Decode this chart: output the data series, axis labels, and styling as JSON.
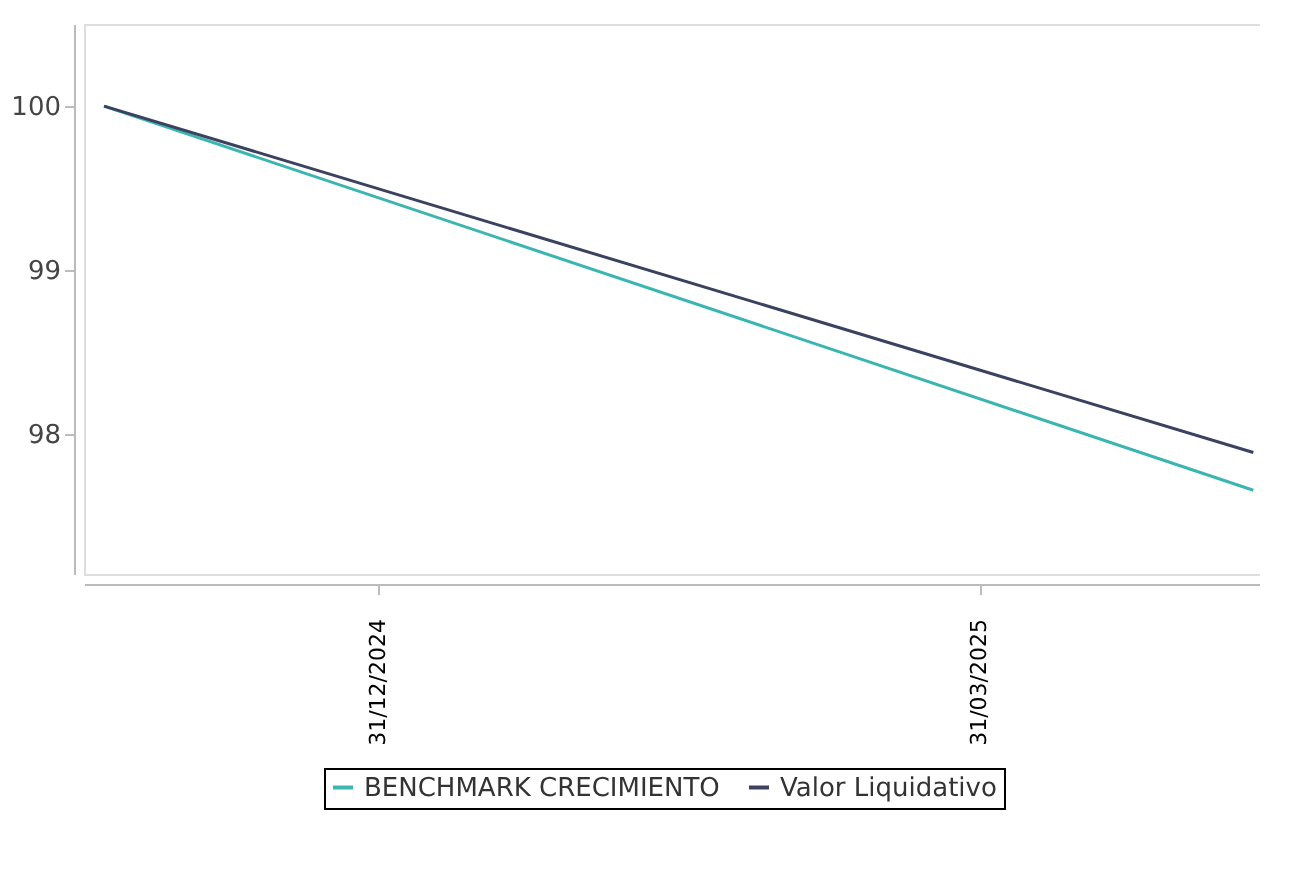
{
  "chart_data": {
    "type": "line",
    "x": [
      "2024-11-20",
      "2025-05-11"
    ],
    "series": [
      {
        "name": "BENCHMARK CRECIMIENTO",
        "color": "#3ab5b0",
        "values": [
          100,
          97.66
        ]
      },
      {
        "name": "Valor Liquidativo",
        "color": "#3a4260",
        "values": [
          100,
          97.89
        ]
      }
    ],
    "xlim": [
      "2024-11-17",
      "2025-05-12"
    ],
    "xticks": [
      {
        "value": "2024-12-31",
        "label": "31/12/2024"
      },
      {
        "value": "2025-03-31",
        "label": "31/03/2025"
      }
    ],
    "ylim": [
      97.15,
      100.5
    ],
    "yticks": [
      98,
      99,
      100
    ],
    "legend": "bottom",
    "marker": "none",
    "line_style": "solid"
  }
}
